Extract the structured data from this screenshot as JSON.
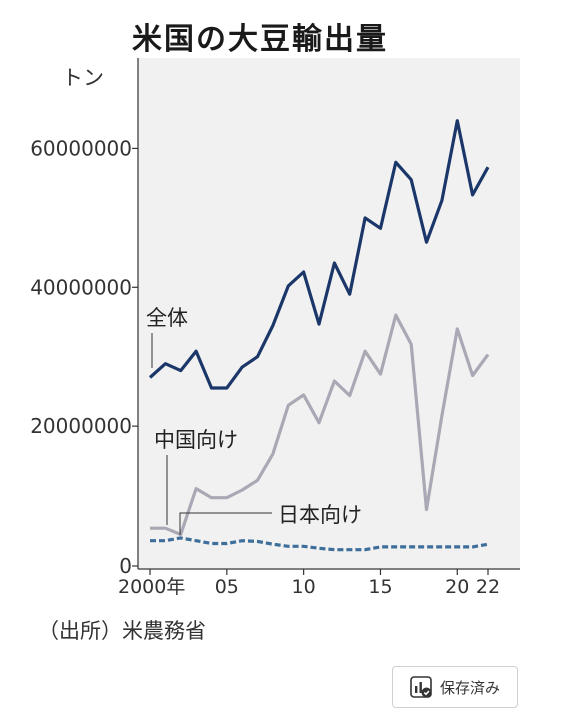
{
  "chart_data": {
    "type": "line",
    "title": "米国の大豆輸出量",
    "ylabel": "トン",
    "ylim": [
      0,
      70000000
    ],
    "yticks": [
      0,
      20000000,
      40000000,
      60000000
    ],
    "ytick_labels": [
      "0",
      "20000000",
      "40000000",
      "60000000"
    ],
    "xlim": [
      2000,
      2022
    ],
    "xtick_labels": [
      "2000年",
      "05",
      "10",
      "15",
      "20",
      "22"
    ],
    "xtick_values": [
      2000,
      2005,
      2010,
      2015,
      2020,
      2022
    ],
    "grid": false,
    "source": "（出所）米農務省",
    "series": [
      {
        "name": "全体",
        "color": "#1b3668",
        "style": "solid",
        "x": [
          2000,
          2001,
          2002,
          2003,
          2004,
          2005,
          2006,
          2007,
          2008,
          2009,
          2010,
          2011,
          2012,
          2013,
          2014,
          2015,
          2016,
          2017,
          2018,
          2019,
          2020,
          2021,
          2022
        ],
        "values": [
          27000000,
          29000000,
          28000000,
          30800000,
          25500000,
          25500000,
          28500000,
          30000000,
          34500000,
          40200000,
          42200000,
          34700000,
          43500000,
          39000000,
          50000000,
          48500000,
          58000000,
          55500000,
          46500000,
          52500000,
          64000000,
          53300000,
          57300000
        ]
      },
      {
        "name": "中国向け",
        "color": "#a9a8b4",
        "style": "solid",
        "x": [
          2000,
          2001,
          2002,
          2003,
          2004,
          2005,
          2006,
          2007,
          2008,
          2009,
          2010,
          2011,
          2012,
          2013,
          2014,
          2015,
          2016,
          2017,
          2018,
          2019,
          2020,
          2021,
          2022
        ],
        "values": [
          5300000,
          5300000,
          4400000,
          11000000,
          9700000,
          9700000,
          10800000,
          12200000,
          16000000,
          23000000,
          24500000,
          20500000,
          26500000,
          24400000,
          30800000,
          27500000,
          36000000,
          31800000,
          8000000,
          21500000,
          34000000,
          27300000,
          30300000
        ]
      },
      {
        "name": "日本向け",
        "color": "#3e6e9a",
        "style": "dashed",
        "x": [
          2000,
          2001,
          2002,
          2003,
          2004,
          2005,
          2006,
          2007,
          2008,
          2009,
          2010,
          2011,
          2012,
          2013,
          2014,
          2015,
          2016,
          2017,
          2018,
          2019,
          2020,
          2021,
          2022
        ],
        "values": [
          3500000,
          3500000,
          3900000,
          3500000,
          3100000,
          3100000,
          3500000,
          3400000,
          3000000,
          2700000,
          2700000,
          2400000,
          2200000,
          2200000,
          2200000,
          2600000,
          2600000,
          2600000,
          2600000,
          2600000,
          2600000,
          2600000,
          3000000
        ]
      }
    ]
  },
  "save_button": {
    "label": "保存済み",
    "icon": "chart-saved-icon"
  }
}
